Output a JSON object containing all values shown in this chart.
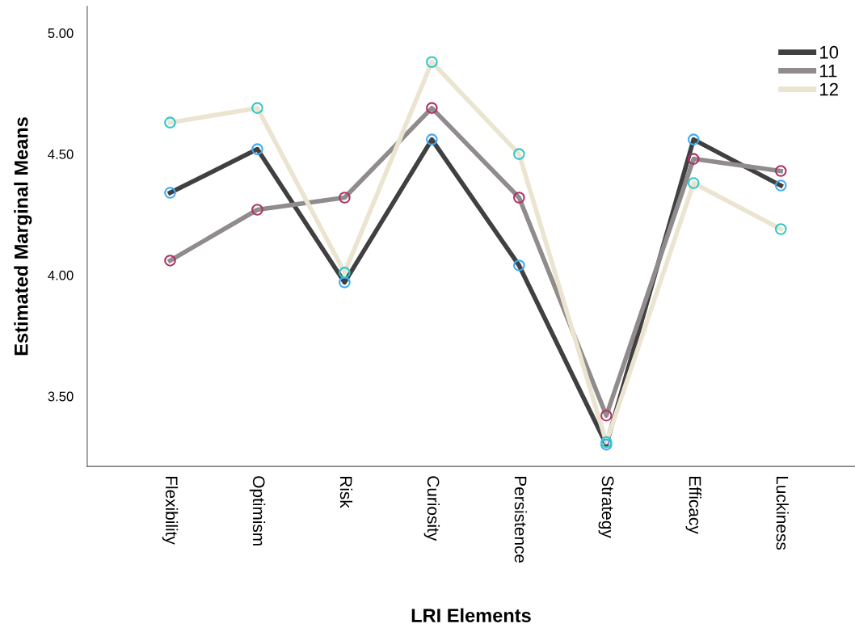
{
  "chart_data": {
    "type": "line",
    "xlabel": "LRI Elements",
    "ylabel": "Estimated Marginal Means",
    "categories": [
      "Flexibility",
      "Optimism",
      "Risk",
      "Curiosity",
      "Persistence",
      "Strategy",
      "Efficacy",
      "Luckiness"
    ],
    "series": [
      {
        "name": "10",
        "color": "#404040",
        "colors": [
          "#3fa9f5",
          "#3fa9f5",
          "#3fa9f5",
          "#3fa9f5",
          "#3fa9f5",
          "#3fa9f5",
          "#3fa9f5",
          "#3fa9f5"
        ],
        "values": [
          4.34,
          4.52,
          3.97,
          4.56,
          4.04,
          3.3,
          4.56,
          4.37
        ]
      },
      {
        "name": "11",
        "color": "#918c8c",
        "colors": [
          "#b0306a",
          "#b0306a",
          "#b0306a",
          "#b0306a",
          "#b0306a",
          "#b0306a",
          "#b0306a",
          "#b0306a"
        ],
        "values": [
          4.06,
          4.27,
          4.32,
          4.69,
          4.32,
          3.42,
          4.48,
          4.43
        ]
      },
      {
        "name": "12",
        "color": "#ebe4d0",
        "colors": [
          "#2ec8c8",
          "#2ec8c8",
          "#2ec8c8",
          "#2ec8c8",
          "#2ec8c8",
          "#2ec8c8",
          "#2ec8c8",
          "#2ec8c8"
        ],
        "values": [
          4.63,
          4.69,
          4.01,
          4.88,
          4.5,
          3.31,
          4.38,
          4.19
        ]
      }
    ],
    "ylim": [
      3.21,
      5.11
    ],
    "yticks": [
      {
        "value": 3.5,
        "label": "3.50"
      },
      {
        "value": 4.0,
        "label": "4.00"
      },
      {
        "value": 4.5,
        "label": "4.50"
      },
      {
        "value": 5.0,
        "label": "5.00"
      }
    ],
    "grid": false,
    "legend": "top right",
    "marker": "circle",
    "line_style": "solid"
  }
}
